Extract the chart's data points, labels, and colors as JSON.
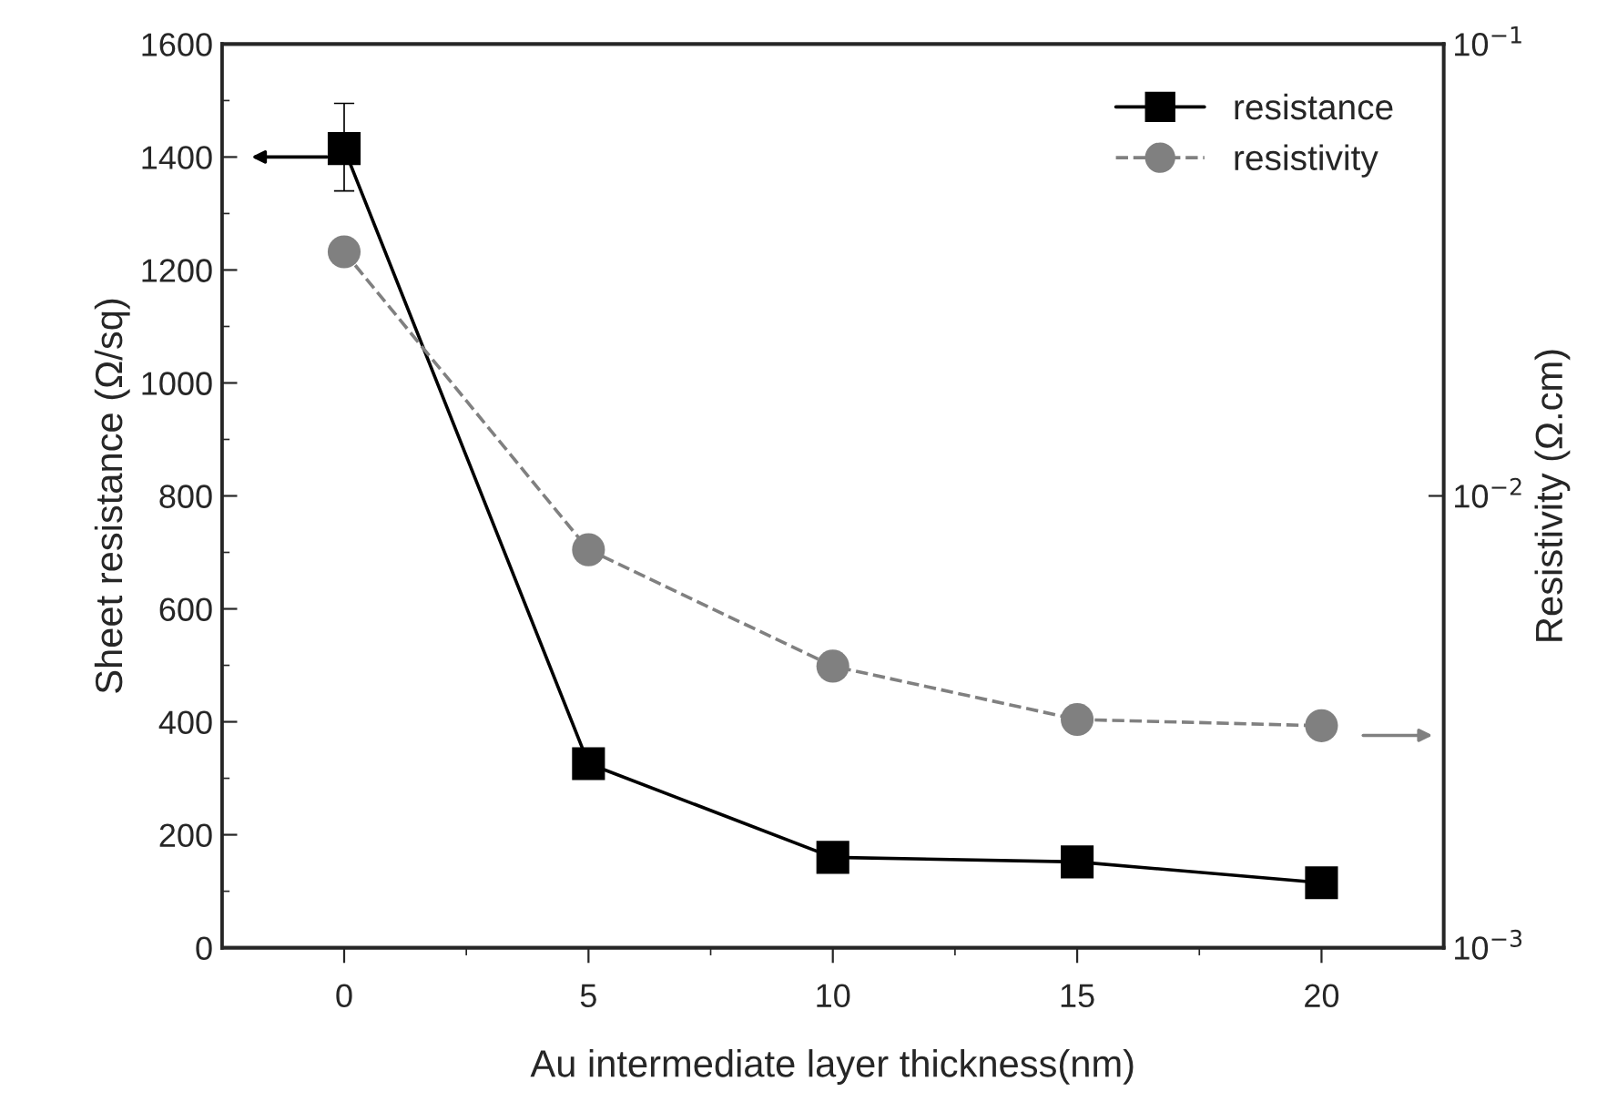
{
  "chart_data": {
    "type": "line",
    "xlabel": "Au intermediate layer thickness(nm)",
    "ylabel": "Sheet resistance (Ω/sq)",
    "y2label": "Resistivity (Ω.cm)",
    "x": [
      0,
      5,
      10,
      15,
      20
    ],
    "series": [
      {
        "name": "resistance",
        "color": "#000000",
        "marker": "square",
        "line_style": "solid",
        "values": [
          1415,
          326,
          160,
          152,
          115
        ],
        "errors": [
          [
            1340,
            1495
          ],
          null,
          null,
          null,
          null
        ]
      },
      {
        "name": "resistivity",
        "color": "#808080",
        "marker": "circle",
        "line_style": "dashed",
        "axis": "y2",
        "values": [
          0.0347,
          0.0076,
          0.0042,
          0.0032,
          0.0031
        ]
      }
    ],
    "xlim": [
      -2.5,
      22.5
    ],
    "xticks": [
      0,
      {
        "value": 2.5,
        "label": null
      },
      5,
      {
        "value": 7.5,
        "label": null
      },
      10,
      {
        "value": 12.5,
        "label": null
      },
      15,
      {
        "value": 17.5,
        "label": null
      },
      20
    ],
    "ylim": [
      0,
      1600
    ],
    "yticks": [
      0,
      {
        "value": 100,
        "label": null
      },
      200,
      {
        "value": 300,
        "label": null
      },
      400,
      {
        "value": 500,
        "label": null
      },
      600,
      {
        "value": 700,
        "label": null
      },
      800,
      {
        "value": 900,
        "label": null
      },
      1000,
      {
        "value": 1100,
        "label": null
      },
      1200,
      {
        "value": 1300,
        "label": null
      },
      1400,
      {
        "value": 1500,
        "label": null
      },
      1600
    ],
    "y2lim": [
      0.001,
      0.1
    ],
    "y2ticks": [
      {
        "value": 0.001,
        "label": "10$^{−3}$"
      },
      {
        "value": 0.01,
        "label": "10$^{−2}$"
      },
      {
        "value": 0.1,
        "label": "10$^{−1}$"
      }
    ],
    "log": "y2",
    "grid": false,
    "legend": "top right"
  }
}
